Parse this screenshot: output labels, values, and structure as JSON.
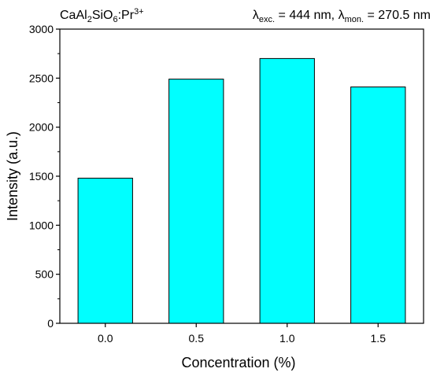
{
  "chart_data": {
    "type": "bar",
    "title_left": {
      "parts": [
        "CaAl",
        "2",
        "SiO",
        "6",
        ":Pr",
        "3+"
      ]
    },
    "title_right": {
      "parts": [
        "λ",
        "exc.",
        " = 444 nm, ",
        "λ",
        "mon.",
        " = 270.5 nm"
      ]
    },
    "categories": [
      "0.0",
      "0.5",
      "1.0",
      "1.5"
    ],
    "values": [
      1480,
      2490,
      2700,
      2410
    ],
    "xlabel": "Concentration (%)",
    "ylabel": "Intensity (a.u.)",
    "ylim": [
      0,
      3000
    ],
    "yticks": [
      0,
      500,
      1000,
      1500,
      2000,
      2500,
      3000
    ],
    "grid": false,
    "colors": {
      "bar_fill": "#00ffff",
      "bar_stroke": "#000000",
      "axis": "#000000"
    }
  }
}
